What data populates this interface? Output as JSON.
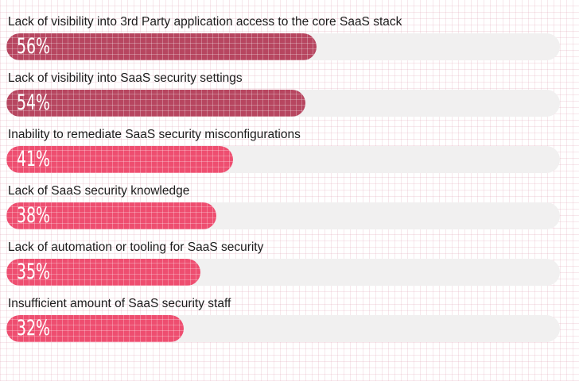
{
  "chart_data": {
    "type": "bar",
    "orientation": "horizontal",
    "title": "",
    "xlabel": "",
    "ylabel": "",
    "xlim": [
      0,
      100
    ],
    "grid": "faint pink background grid, crosshatch texture on bars",
    "legend": "none",
    "categories": [
      "Lack of visibility into 3rd Party application access to the core SaaS stack",
      "Lack of visibility into SaaS security settings",
      "Inability to remediate SaaS security misconfigurations",
      "Lack of SaaS security knowledge",
      "Lack of automation or tooling for SaaS security",
      "Insufficient amount of SaaS security staff"
    ],
    "values": [
      56,
      54,
      41,
      38,
      35,
      32
    ],
    "value_labels": [
      "56%",
      "54%",
      "41%",
      "38%",
      "35%",
      "32%"
    ],
    "bar_colors": [
      "#b74660",
      "#b74660",
      "#ee4e70",
      "#ee4e70",
      "#ee4e70",
      "#ee4e70"
    ],
    "track_color": "#f1f0f0",
    "value_label_color": "#ffffff",
    "category_label_color": "#1c1c1c"
  }
}
